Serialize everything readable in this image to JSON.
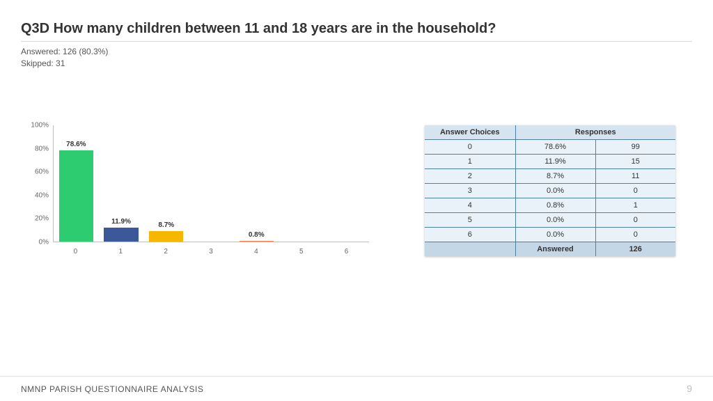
{
  "title": "Q3D  How many children between 11 and 18 years are in the household?",
  "answered_line": "Answered: 126 (80.3%)",
  "skipped_line": "Skipped: 31",
  "footer_text": "NMNP PARISH QUESTIONNAIRE ANALYSIS",
  "page_number": "9",
  "chart": {
    "type": "bar",
    "ylim_max_pct": 100,
    "ytick_step_pct": 20,
    "yticks_pct": [
      0,
      20,
      40,
      60,
      80,
      100
    ],
    "ytick_labels": [
      "0%",
      "20%",
      "40%",
      "60%",
      "80%",
      "100%"
    ],
    "label_fontsize_pt": 10,
    "categories": [
      "0",
      "1",
      "2",
      "3",
      "4",
      "5",
      "6"
    ],
    "values_pct": [
      78.6,
      11.9,
      8.7,
      0.0,
      0.8,
      0.0,
      0.0
    ],
    "bar_labels": [
      "78.6%",
      "11.9%",
      "8.7%",
      "",
      "0.8%",
      "",
      ""
    ],
    "bar_colors": [
      "#2ecc71",
      "#3b5998",
      "#f5b700",
      "#000000",
      "#ff7f50",
      "#000000",
      "#000000"
    ],
    "axis_color": "#c0c0c0",
    "background_color": "#ffffff"
  },
  "table": {
    "header_bg": "#d6e4ef",
    "row_bg": "#e9f2f8",
    "footer_bg": "#c3d7e6",
    "border_color": "#4f7ea3",
    "text_color": "#333333",
    "col_headers": [
      "Answer Choices",
      "Responses"
    ],
    "rows": [
      {
        "choice": "0",
        "pct": "78.6%",
        "count": "99"
      },
      {
        "choice": "1",
        "pct": "11.9%",
        "count": "15"
      },
      {
        "choice": "2",
        "pct": "8.7%",
        "count": "11"
      },
      {
        "choice": "3",
        "pct": "0.0%",
        "count": "0"
      },
      {
        "choice": "4",
        "pct": "0.8%",
        "count": "1"
      },
      {
        "choice": "5",
        "pct": "0.0%",
        "count": "0"
      },
      {
        "choice": "6",
        "pct": "0.0%",
        "count": "0"
      }
    ],
    "footer_label": "Answered",
    "footer_value": "126"
  }
}
